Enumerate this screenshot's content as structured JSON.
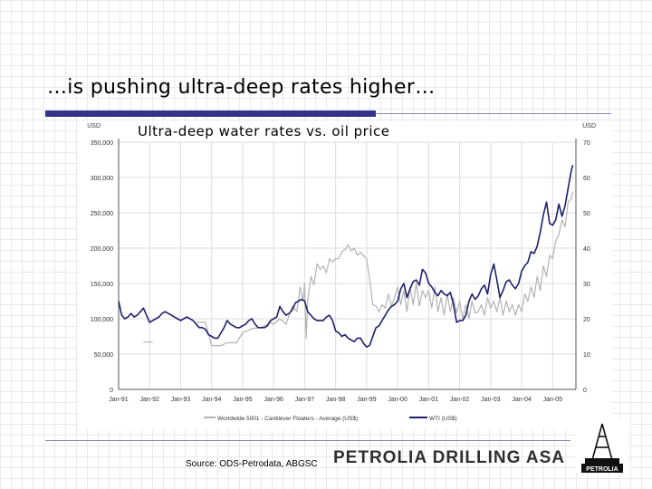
{
  "slide": {
    "title": "…is pushing ultra-deep rates higher…",
    "source": "Source: ODS-Petrodata, ABGSC",
    "company": "PETROLIA DRILLING ASA",
    "logo_text": "PETROLIA"
  },
  "chart_data": {
    "type": "line",
    "title": "Ultra-deep water rates vs. oil price",
    "left_unit": "USD",
    "right_unit": "USD",
    "y_left": {
      "range": [
        0,
        350000
      ],
      "ticks": [
        "0",
        "50,000",
        "100,000",
        "150,000",
        "200,000",
        "250,000",
        "300,000",
        "350,000"
      ]
    },
    "y_right": {
      "range": [
        0,
        70
      ],
      "ticks": [
        "0",
        "10",
        "20",
        "30",
        "40",
        "50",
        "60",
        "70"
      ]
    },
    "x_labels": [
      "Jan-91",
      "Jan-92",
      "Jan-93",
      "Jan-94",
      "Jan-95",
      "Jan-96",
      "Jan-97",
      "Jan-98",
      "Jan-99",
      "Jan-00",
      "Jan-01",
      "Jan-02",
      "Jan-03",
      "Jan-04",
      "Jan-05"
    ],
    "x_range": [
      1991.0,
      2005.75
    ],
    "grid": true,
    "legend_position": "bottom",
    "series": [
      {
        "name": "Worldwide 5001 - Cantilever Floaters - Average (US$)",
        "axis": "left",
        "color": "#b3b3b3",
        "points": [
          [
            1991.8,
            67000
          ],
          [
            1992.1,
            67000
          ],
          [
            1993.5,
            95000
          ],
          [
            1993.8,
            95000
          ],
          [
            1994.0,
            62000
          ],
          [
            1994.3,
            62000
          ],
          [
            1994.5,
            66000
          ],
          [
            1994.8,
            66000
          ],
          [
            1995.0,
            80000
          ],
          [
            1995.3,
            86000
          ],
          [
            1995.6,
            88000
          ],
          [
            1995.9,
            95000
          ],
          [
            1996.0,
            92000
          ],
          [
            1996.2,
            100000
          ],
          [
            1996.4,
            92000
          ],
          [
            1996.6,
            118000
          ],
          [
            1996.75,
            110000
          ],
          [
            1996.85,
            145000
          ],
          [
            1996.95,
            125000
          ],
          [
            1997.0,
            150000
          ],
          [
            1997.05,
            72000
          ],
          [
            1997.1,
            125000
          ],
          [
            1997.2,
            160000
          ],
          [
            1997.3,
            148000
          ],
          [
            1997.4,
            178000
          ],
          [
            1997.5,
            170000
          ],
          [
            1997.6,
            175000
          ],
          [
            1997.7,
            165000
          ],
          [
            1997.8,
            185000
          ],
          [
            1997.9,
            180000
          ],
          [
            1998.0,
            185000
          ],
          [
            1998.1,
            185000
          ],
          [
            1998.2,
            195000
          ],
          [
            1998.3,
            198000
          ],
          [
            1998.4,
            205000
          ],
          [
            1998.5,
            196000
          ],
          [
            1998.6,
            200000
          ],
          [
            1998.7,
            190000
          ],
          [
            1998.8,
            194000
          ],
          [
            1999.0,
            185000
          ],
          [
            1999.1,
            155000
          ],
          [
            1999.2,
            120000
          ],
          [
            1999.3,
            118000
          ],
          [
            1999.4,
            110000
          ],
          [
            1999.5,
            120000
          ],
          [
            1999.6,
            115000
          ],
          [
            1999.7,
            135000
          ],
          [
            1999.8,
            118000
          ],
          [
            1999.9,
            130000
          ],
          [
            2000.0,
            145000
          ],
          [
            2000.1,
            120000
          ],
          [
            2000.2,
            140000
          ],
          [
            2000.3,
            110000
          ],
          [
            2000.4,
            145000
          ],
          [
            2000.5,
            120000
          ],
          [
            2000.6,
            150000
          ],
          [
            2000.7,
            118000
          ],
          [
            2000.8,
            140000
          ],
          [
            2000.9,
            130000
          ],
          [
            2001.0,
            140000
          ],
          [
            2001.1,
            115000
          ],
          [
            2001.2,
            145000
          ],
          [
            2001.3,
            110000
          ],
          [
            2001.4,
            130000
          ],
          [
            2001.5,
            105000
          ],
          [
            2001.6,
            135000
          ],
          [
            2001.7,
            110000
          ],
          [
            2001.8,
            130000
          ],
          [
            2001.9,
            108000
          ],
          [
            2002.0,
            125000
          ],
          [
            2002.1,
            100000
          ],
          [
            2002.2,
            120000
          ],
          [
            2002.3,
            100000
          ],
          [
            2002.4,
            125000
          ],
          [
            2002.5,
            108000
          ],
          [
            2002.6,
            110000
          ],
          [
            2002.7,
            120000
          ],
          [
            2002.8,
            105000
          ],
          [
            2002.9,
            130000
          ],
          [
            2003.0,
            115000
          ],
          [
            2003.1,
            125000
          ],
          [
            2003.2,
            110000
          ],
          [
            2003.3,
            130000
          ],
          [
            2003.4,
            105000
          ],
          [
            2003.5,
            125000
          ],
          [
            2003.6,
            110000
          ],
          [
            2003.7,
            120000
          ],
          [
            2003.8,
            105000
          ],
          [
            2003.9,
            120000
          ],
          [
            2004.0,
            110000
          ],
          [
            2004.1,
            135000
          ],
          [
            2004.2,
            125000
          ],
          [
            2004.3,
            145000
          ],
          [
            2004.4,
            130000
          ],
          [
            2004.5,
            160000
          ],
          [
            2004.6,
            140000
          ],
          [
            2004.7,
            175000
          ],
          [
            2004.8,
            160000
          ],
          [
            2004.9,
            190000
          ],
          [
            2005.0,
            185000
          ],
          [
            2005.1,
            210000
          ],
          [
            2005.2,
            220000
          ],
          [
            2005.3,
            240000
          ],
          [
            2005.4,
            230000
          ],
          [
            2005.5,
            265000
          ],
          [
            2005.6,
            270000
          ],
          [
            2005.65,
            280000
          ]
        ]
      },
      {
        "name": "WTI (US$)",
        "axis": "right",
        "color": "#1f1f6e",
        "points": [
          [
            1991.0,
            25
          ],
          [
            1991.1,
            21
          ],
          [
            1991.2,
            20
          ],
          [
            1991.3,
            20.5
          ],
          [
            1991.4,
            21.5
          ],
          [
            1991.5,
            20.5
          ],
          [
            1991.6,
            21
          ],
          [
            1991.7,
            22
          ],
          [
            1991.8,
            23
          ],
          [
            1991.9,
            21
          ],
          [
            1992.0,
            19
          ],
          [
            1992.1,
            19.5
          ],
          [
            1992.2,
            20
          ],
          [
            1992.3,
            20.5
          ],
          [
            1992.4,
            21.5
          ],
          [
            1992.5,
            22
          ],
          [
            1992.6,
            21.5
          ],
          [
            1992.7,
            21
          ],
          [
            1992.8,
            20.5
          ],
          [
            1992.9,
            20
          ],
          [
            1993.0,
            19.5
          ],
          [
            1993.1,
            20
          ],
          [
            1993.2,
            20.5
          ],
          [
            1993.3,
            20
          ],
          [
            1993.4,
            19.5
          ],
          [
            1993.5,
            18.5
          ],
          [
            1993.6,
            17.5
          ],
          [
            1993.7,
            17.5
          ],
          [
            1993.8,
            17
          ],
          [
            1993.9,
            15.5
          ],
          [
            1994.0,
            15
          ],
          [
            1994.1,
            14.5
          ],
          [
            1994.2,
            14.5
          ],
          [
            1994.3,
            16
          ],
          [
            1994.4,
            17.5
          ],
          [
            1994.5,
            19.5
          ],
          [
            1994.6,
            18.5
          ],
          [
            1994.7,
            18
          ],
          [
            1994.8,
            17.5
          ],
          [
            1994.9,
            17.5
          ],
          [
            1995.0,
            18
          ],
          [
            1995.1,
            18.5
          ],
          [
            1995.2,
            19.5
          ],
          [
            1995.3,
            20
          ],
          [
            1995.4,
            18.5
          ],
          [
            1995.5,
            17.5
          ],
          [
            1995.6,
            17.5
          ],
          [
            1995.7,
            17.5
          ],
          [
            1995.8,
            18
          ],
          [
            1995.9,
            19.5
          ],
          [
            1996.0,
            20
          ],
          [
            1996.1,
            20.5
          ],
          [
            1996.2,
            23.5
          ],
          [
            1996.3,
            22
          ],
          [
            1996.4,
            21
          ],
          [
            1996.5,
            21.5
          ],
          [
            1996.6,
            22.5
          ],
          [
            1996.7,
            24.5
          ],
          [
            1996.8,
            25
          ],
          [
            1996.9,
            25.5
          ],
          [
            1997.0,
            25
          ],
          [
            1997.1,
            22
          ],
          [
            1997.2,
            21
          ],
          [
            1997.3,
            20
          ],
          [
            1997.4,
            19.5
          ],
          [
            1997.5,
            19.5
          ],
          [
            1997.6,
            19.5
          ],
          [
            1997.7,
            20.5
          ],
          [
            1997.8,
            21
          ],
          [
            1997.9,
            19.5
          ],
          [
            1998.0,
            16.5
          ],
          [
            1998.1,
            16
          ],
          [
            1998.2,
            15
          ],
          [
            1998.3,
            15.5
          ],
          [
            1998.4,
            14.5
          ],
          [
            1998.5,
            14
          ],
          [
            1998.6,
            13.5
          ],
          [
            1998.7,
            14.5
          ],
          [
            1998.8,
            14.5
          ],
          [
            1998.9,
            13
          ],
          [
            1999.0,
            12
          ],
          [
            1999.1,
            12.5
          ],
          [
            1999.2,
            15
          ],
          [
            1999.3,
            17.5
          ],
          [
            1999.4,
            18
          ],
          [
            1999.5,
            19.5
          ],
          [
            1999.6,
            21
          ],
          [
            1999.7,
            22.5
          ],
          [
            1999.8,
            23.5
          ],
          [
            1999.9,
            24
          ],
          [
            2000.0,
            25
          ],
          [
            2000.1,
            28.5
          ],
          [
            2000.2,
            30
          ],
          [
            2000.3,
            26
          ],
          [
            2000.4,
            28.5
          ],
          [
            2000.5,
            30.5
          ],
          [
            2000.6,
            31
          ],
          [
            2000.7,
            29.5
          ],
          [
            2000.8,
            34
          ],
          [
            2000.9,
            33
          ],
          [
            2001.0,
            30
          ],
          [
            2001.1,
            29
          ],
          [
            2001.2,
            27.5
          ],
          [
            2001.3,
            26.5
          ],
          [
            2001.4,
            28
          ],
          [
            2001.5,
            27
          ],
          [
            2001.6,
            26.5
          ],
          [
            2001.7,
            27.5
          ],
          [
            2001.8,
            24
          ],
          [
            2001.9,
            19
          ],
          [
            2002.0,
            19.5
          ],
          [
            2002.1,
            19.5
          ],
          [
            2002.2,
            21
          ],
          [
            2002.3,
            25
          ],
          [
            2002.4,
            27
          ],
          [
            2002.5,
            25.5
          ],
          [
            2002.6,
            26.5
          ],
          [
            2002.7,
            28.5
          ],
          [
            2002.8,
            29.5
          ],
          [
            2002.9,
            27
          ],
          [
            2003.0,
            32.5
          ],
          [
            2003.1,
            35.5
          ],
          [
            2003.2,
            31
          ],
          [
            2003.3,
            26
          ],
          [
            2003.4,
            28
          ],
          [
            2003.5,
            30.5
          ],
          [
            2003.6,
            31
          ],
          [
            2003.7,
            29.5
          ],
          [
            2003.8,
            28.5
          ],
          [
            2003.9,
            30
          ],
          [
            2004.0,
            33.5
          ],
          [
            2004.1,
            35
          ],
          [
            2004.2,
            36
          ],
          [
            2004.3,
            39
          ],
          [
            2004.4,
            38.5
          ],
          [
            2004.5,
            40.5
          ],
          [
            2004.6,
            44.5
          ],
          [
            2004.7,
            49.5
          ],
          [
            2004.8,
            53
          ],
          [
            2004.9,
            47
          ],
          [
            2005.0,
            46.5
          ],
          [
            2005.1,
            48
          ],
          [
            2005.2,
            52.5
          ],
          [
            2005.3,
            49
          ],
          [
            2005.4,
            52
          ],
          [
            2005.5,
            57
          ],
          [
            2005.6,
            62
          ],
          [
            2005.65,
            63.5
          ]
        ]
      }
    ]
  }
}
